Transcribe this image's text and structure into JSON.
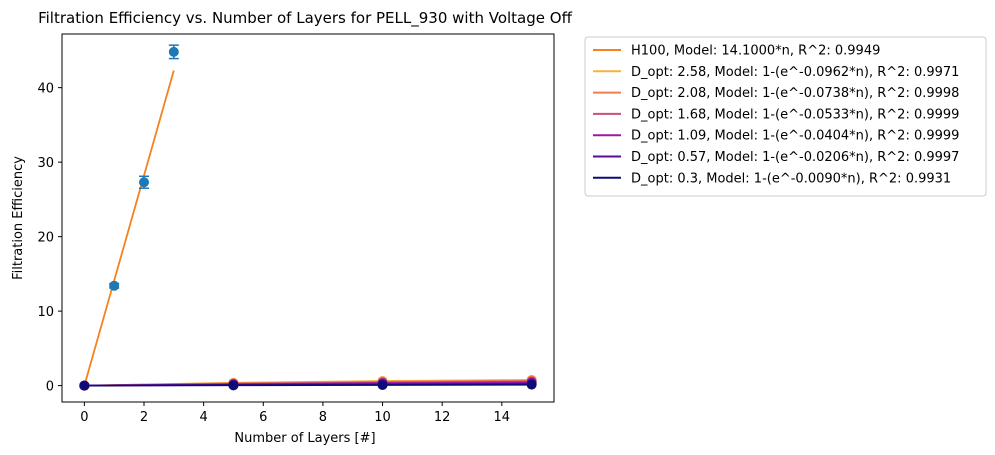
{
  "chart_data": {
    "type": "line",
    "title": "Filtration Efficiency vs. Number of Layers for PELL_930 with Voltage Off",
    "xlabel": "Number of Layers [#]",
    "ylabel": "Filtration Efficiency",
    "xlim": [
      -0.75,
      15.75
    ],
    "ylim": [
      -2.2,
      47.2
    ],
    "xticks": [
      0,
      2,
      4,
      6,
      8,
      10,
      12,
      14
    ],
    "yticks": [
      0,
      10,
      20,
      30,
      40
    ],
    "grid": false,
    "legend_position": "outside-right-top",
    "series": [
      {
        "name": " H100, Model: 14.1000*n, R^2: 0.9949",
        "color": "#f5821f",
        "line": {
          "x": [
            0,
            3
          ],
          "y": [
            0,
            42.3
          ]
        },
        "points": {
          "x": [
            0,
            1,
            2,
            3
          ],
          "y": [
            0,
            13.4,
            27.3,
            44.8
          ],
          "err": [
            0.2,
            0.3,
            0.8,
            0.9
          ]
        }
      },
      {
        "name": "D_opt: 2.58, Model: 1-(e^-0.0962*n), R^2: 0.9971",
        "color": "#f9b233",
        "line": {
          "x": [
            0,
            5,
            10,
            15
          ],
          "y": [
            0,
            0.382,
            0.618,
            0.764
          ]
        },
        "points": {
          "x": [
            0,
            5,
            10,
            15
          ],
          "y": [
            0,
            0.38,
            0.62,
            0.77
          ],
          "err": [
            0.05,
            0.08,
            0.1,
            0.1
          ]
        }
      },
      {
        "name": "D_opt: 2.08, Model: 1-(e^-0.0738*n), R^2: 0.9998",
        "color": "#f07b51",
        "line": {
          "x": [
            0,
            5,
            10,
            15
          ],
          "y": [
            0,
            0.309,
            0.522,
            0.67
          ]
        },
        "points": {
          "x": [
            0,
            5,
            10,
            15
          ],
          "y": [
            0,
            0.31,
            0.52,
            0.67
          ],
          "err": [
            0.05,
            0.05,
            0.05,
            0.05
          ]
        }
      },
      {
        "name": "D_opt: 1.68, Model: 1-(e^-0.0533*n), R^2: 0.9999",
        "color": "#c8507a",
        "line": {
          "x": [
            0,
            5,
            10,
            15
          ],
          "y": [
            0,
            0.234,
            0.413,
            0.55
          ]
        },
        "points": {
          "x": [
            0,
            5,
            10,
            15
          ],
          "y": [
            0,
            0.23,
            0.41,
            0.55
          ],
          "err": [
            0.05,
            0.05,
            0.05,
            0.05
          ]
        }
      },
      {
        "name": "D_opt: 1.09, Model: 1-(e^-0.0404*n), R^2: 0.9999",
        "color": "#9a1aa4",
        "line": {
          "x": [
            0,
            5,
            10,
            15
          ],
          "y": [
            0,
            0.183,
            0.332,
            0.454
          ]
        },
        "points": {
          "x": [
            0,
            5,
            10,
            15
          ],
          "y": [
            0,
            0.18,
            0.33,
            0.45
          ],
          "err": [
            0.05,
            0.05,
            0.05,
            0.05
          ]
        }
      },
      {
        "name": "D_opt: 0.57, Model: 1-(e^-0.0206*n), R^2: 0.9997",
        "color": "#5a0a9a",
        "line": {
          "x": [
            0,
            5,
            10,
            15
          ],
          "y": [
            0,
            0.098,
            0.186,
            0.266
          ]
        },
        "points": {
          "x": [
            0,
            5,
            10,
            15
          ],
          "y": [
            0,
            0.1,
            0.19,
            0.27
          ],
          "err": [
            0.05,
            0.05,
            0.05,
            0.05
          ]
        }
      },
      {
        "name": "D_opt: 0.3, Model: 1-(e^-0.0090*n), R^2: 0.9931",
        "color": "#0d0b78",
        "line": {
          "x": [
            0,
            5,
            10,
            15
          ],
          "y": [
            0,
            0.044,
            0.086,
            0.126
          ]
        },
        "points": {
          "x": [
            0,
            5,
            10,
            15
          ],
          "y": [
            0,
            0.04,
            0.09,
            0.13
          ],
          "err": [
            0.05,
            0.05,
            0.05,
            0.05
          ]
        }
      }
    ],
    "marker_color": "#1f77b4"
  }
}
